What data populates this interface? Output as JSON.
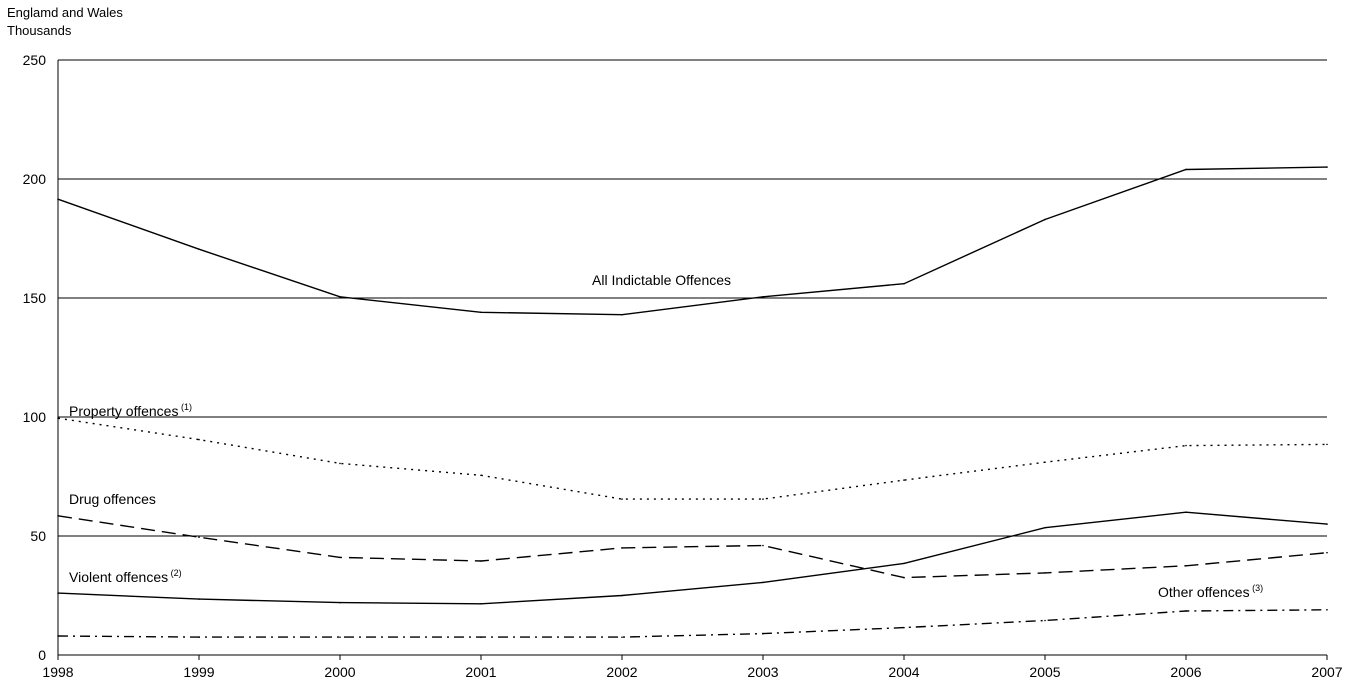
{
  "header": {
    "region": "Englamd and Wales",
    "units": "Thousands"
  },
  "chart_data": {
    "type": "line",
    "title": "",
    "xlabel": "",
    "ylabel": "Thousands",
    "x": [
      "1998",
      "1999",
      "2000",
      "2001",
      "2002",
      "2003",
      "2004",
      "2005",
      "2006",
      "2007"
    ],
    "ylim": [
      0,
      250
    ],
    "yticks": [
      0,
      50,
      100,
      150,
      200,
      250
    ],
    "grid": true,
    "series": [
      {
        "name": "All Indictable Offences",
        "style": "solid",
        "values": [
          191.5,
          170.5,
          150.5,
          144,
          143,
          150.5,
          156,
          183,
          204,
          205
        ],
        "label_text": "All Indictable Offences",
        "label_sup": ""
      },
      {
        "name": "Property offences",
        "style": "dotted",
        "values": [
          99.5,
          90.5,
          80.5,
          75.5,
          65.5,
          65.5,
          73.5,
          81,
          88,
          88.5
        ],
        "label_text": "Property offences",
        "label_sup": "(1)"
      },
      {
        "name": "Drug offences",
        "style": "dashed",
        "values": [
          58.5,
          49.5,
          41,
          39.5,
          45,
          46,
          32.5,
          34.5,
          37.5,
          43
        ],
        "label_text": "Drug offences",
        "label_sup": ""
      },
      {
        "name": "Violent offences",
        "style": "solid",
        "values": [
          26,
          23.5,
          22,
          21.5,
          25,
          30.5,
          38.5,
          53.5,
          60,
          55
        ],
        "label_text": "Violent offences",
        "label_sup": "(2)"
      },
      {
        "name": "Other offences",
        "style": "dashdot",
        "values": [
          8,
          7.5,
          7.5,
          7.5,
          7.5,
          9,
          11.5,
          14.5,
          18.5,
          19
        ],
        "label_text": "Other offences",
        "label_sup": "(3)"
      }
    ]
  }
}
